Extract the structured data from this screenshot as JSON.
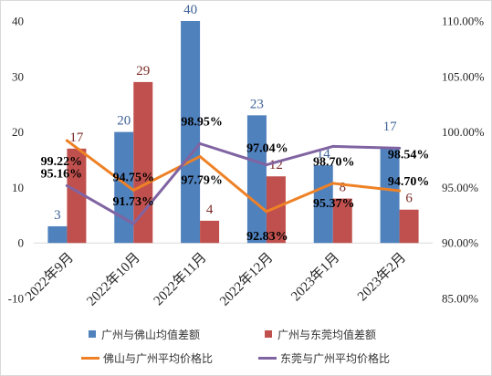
{
  "chart_data": {
    "type": "bar",
    "categories": [
      "2022年9月",
      "2022年10月",
      "2022年11月",
      "2022年12月",
      "2023年1月",
      "2023年2月"
    ],
    "series": [
      {
        "name": "广州与佛山均值差额",
        "type": "bar",
        "axis": "left",
        "values": [
          3,
          20,
          40,
          23,
          14,
          17
        ],
        "color": "#4F81BD",
        "label_color": "#3F6296"
      },
      {
        "name": "广州与东莞均值差额",
        "type": "bar",
        "axis": "left",
        "values": [
          17,
          29,
          4,
          12,
          8,
          6
        ],
        "color": "#C0504D",
        "label_color": "#7A2A27"
      },
      {
        "name": "佛山与广州平均价格比",
        "type": "line",
        "axis": "right",
        "values": [
          99.22,
          94.75,
          97.79,
          92.83,
          95.37,
          94.7
        ],
        "color": "#EE8126",
        "label_color": "#000000"
      },
      {
        "name": "东莞与广州平均价格比",
        "type": "line",
        "axis": "right",
        "values": [
          95.16,
          91.73,
          98.95,
          97.04,
          98.7,
          98.54
        ],
        "color": "#8064A2",
        "label_color": "#000000"
      }
    ],
    "ylim": [
      -10,
      40
    ],
    "yticks": [
      "40",
      "30",
      "20",
      "10",
      "0",
      "-10"
    ],
    "y2lim": [
      85,
      110
    ],
    "y2ticks": [
      "110.00%",
      "105.00%",
      "100.00%",
      "95.00%",
      "90.00%",
      "85.00%"
    ],
    "grid": false,
    "legend": "bottom",
    "data_labels": true
  }
}
